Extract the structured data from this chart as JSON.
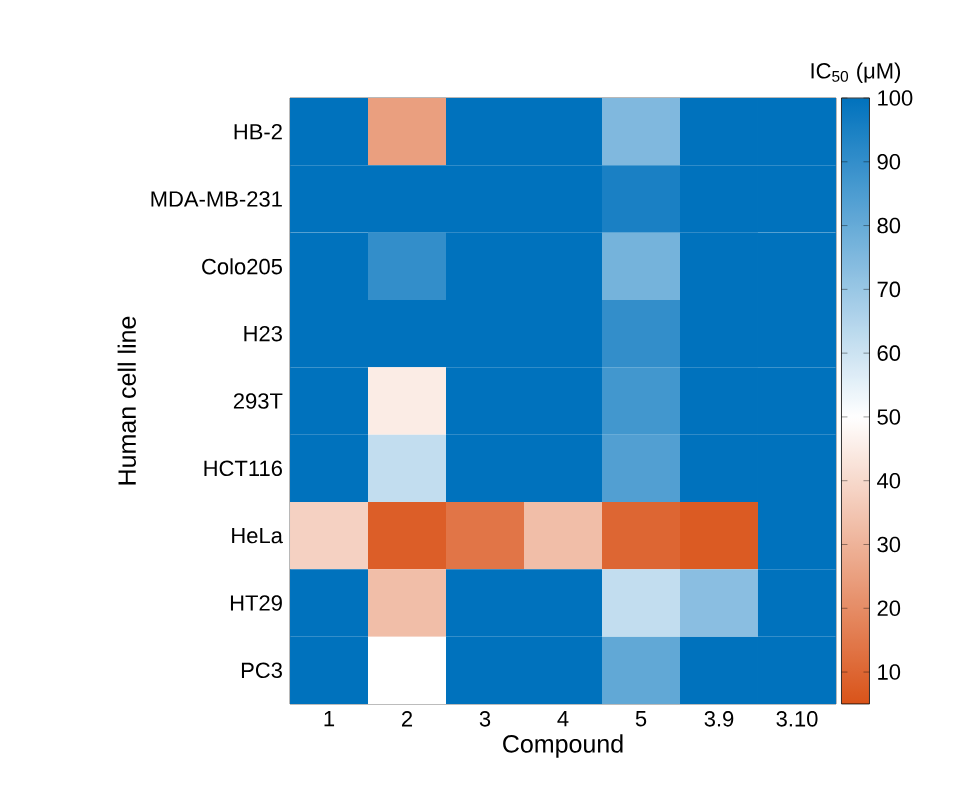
{
  "chart_data": {
    "type": "heatmap",
    "xlabel": "Compound",
    "ylabel": "Human cell line",
    "clabel": "IC$_{50}$ (μM)",
    "categories": [
      "1",
      "2",
      "3",
      "4",
      "5",
      "3.9",
      "3.10"
    ],
    "y_categories": [
      "HB-2",
      "MDA-MB-231",
      "Colo205",
      "H23",
      "293T",
      "HCT116",
      "HeLa",
      "HT29",
      "PC3"
    ],
    "cells": [
      [
        100,
        25,
        100,
        100,
        75,
        100,
        100
      ],
      [
        100,
        100,
        100,
        100,
        95,
        100,
        100
      ],
      [
        100,
        90,
        100,
        100,
        77,
        100,
        100
      ],
      [
        100,
        100,
        100,
        100,
        90,
        100,
        100
      ],
      [
        100,
        45,
        100,
        100,
        87,
        100,
        100
      ],
      [
        100,
        62,
        100,
        100,
        84,
        100,
        100
      ],
      [
        38,
        8,
        14,
        33,
        10,
        7,
        100
      ],
      [
        100,
        33,
        100,
        100,
        62,
        73,
        100
      ],
      [
        100,
        50,
        100,
        100,
        81,
        100,
        100
      ]
    ],
    "clim": [
      5,
      100
    ],
    "cticks": [
      10,
      20,
      30,
      40,
      50,
      60,
      70,
      80,
      90,
      100
    ]
  }
}
